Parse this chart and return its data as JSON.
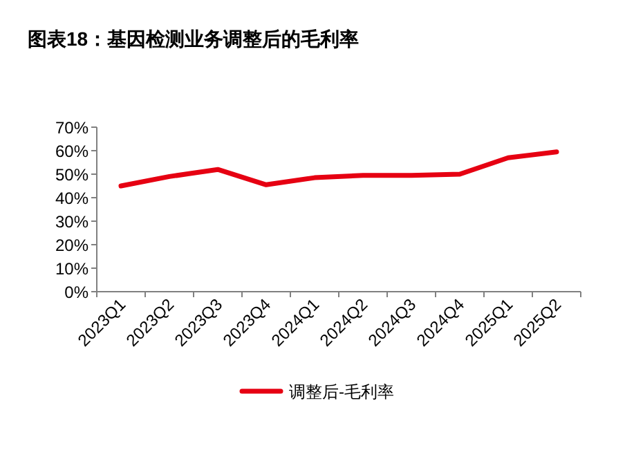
{
  "chart_data": {
    "type": "line",
    "title": "图表18：基因检测业务调整后的毛利率",
    "categories": [
      "2023Q1",
      "2023Q2",
      "2023Q3",
      "2023Q4",
      "2024Q1",
      "2024Q2",
      "2024Q3",
      "2024Q4",
      "2025Q1",
      "2025Q2"
    ],
    "series": [
      {
        "name": "调整后-毛利率",
        "color": "#e60012",
        "values": [
          45,
          49,
          52,
          45.5,
          48.5,
          49.5,
          49.5,
          50,
          57,
          59.5
        ]
      }
    ],
    "ylim": [
      0,
      70
    ],
    "yticks": [
      {
        "value": 0,
        "label": "0%"
      },
      {
        "value": 10,
        "label": "10%"
      },
      {
        "value": 20,
        "label": "20%"
      },
      {
        "value": 30,
        "label": "30%"
      },
      {
        "value": 40,
        "label": "40%"
      },
      {
        "value": 50,
        "label": "50%"
      },
      {
        "value": 60,
        "label": "60%"
      },
      {
        "value": 70,
        "label": "70%"
      }
    ],
    "grid": false,
    "legend": "bottom",
    "marker": "none",
    "line_style": "solid"
  }
}
